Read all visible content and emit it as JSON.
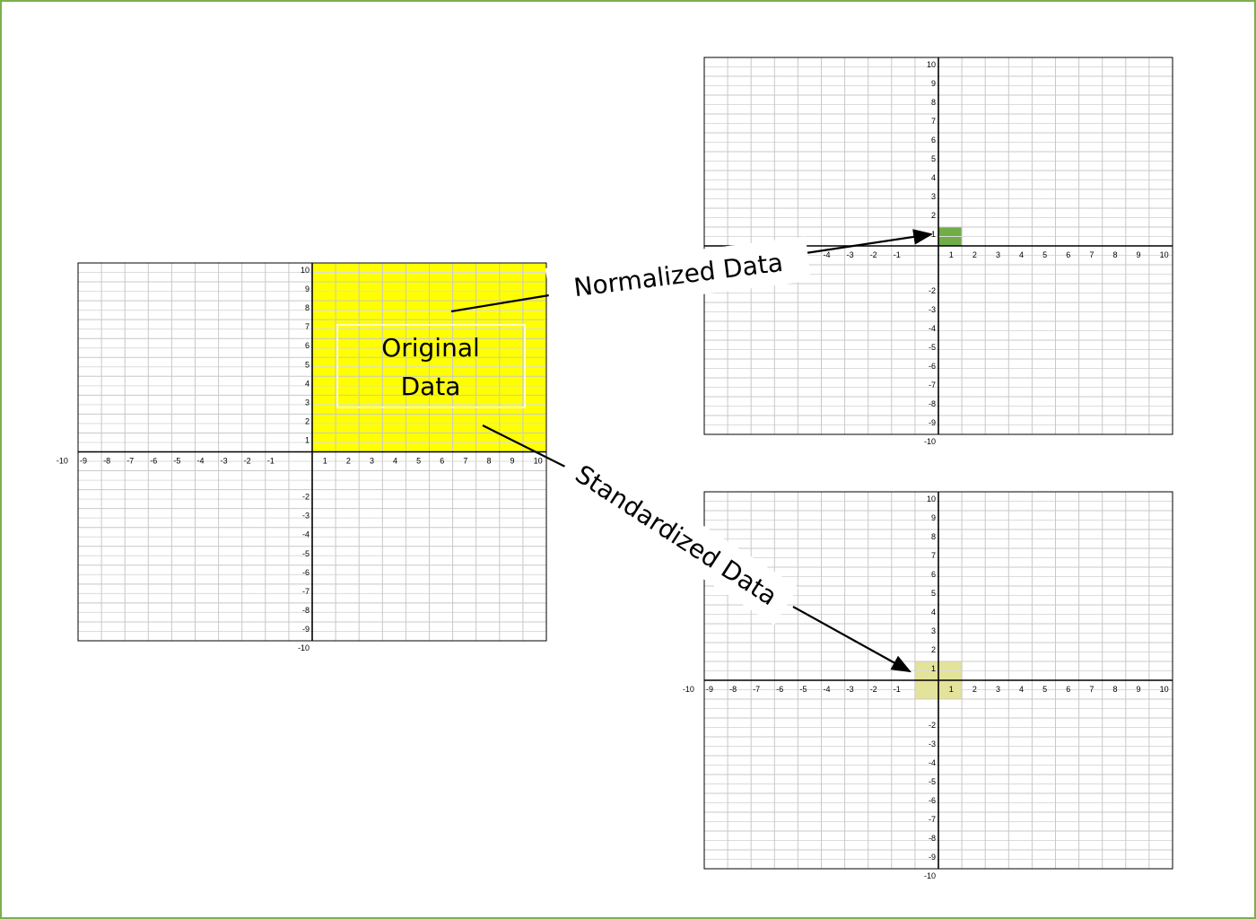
{
  "original_label": [
    "Original",
    "Data"
  ],
  "normalized_label": "Normalized Data",
  "standardized_label": "Standardized Data",
  "axis_range": [
    -10,
    10
  ],
  "colors": {
    "frame": "#7bb04a",
    "original_fill": "#ffff00",
    "normalized_fill": "#70ad47",
    "standardized_fill": "#e3e39a"
  }
}
